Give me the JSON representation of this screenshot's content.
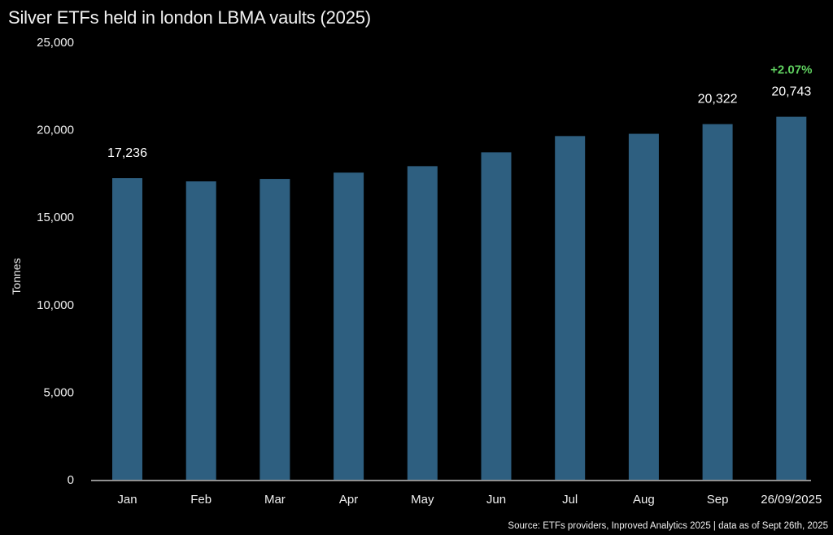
{
  "chart_data": {
    "type": "bar",
    "title": "Silver ETFs held in london LBMA vaults (2025)",
    "xlabel": "",
    "ylabel": "Tonnes",
    "ylim": [
      0,
      25000
    ],
    "yticks": [
      0,
      5000,
      10000,
      15000,
      20000,
      25000
    ],
    "ytick_labels": [
      "0",
      "5,000",
      "10,000",
      "15,000",
      "20,000",
      "25,000"
    ],
    "categories": [
      "Jan",
      "Feb",
      "Mar",
      "Apr",
      "May",
      "Jun",
      "Jul",
      "Aug",
      "Sep",
      "26/09/2025"
    ],
    "values": [
      17236,
      17050,
      17190,
      17550,
      17920,
      18710,
      19640,
      19770,
      20322,
      20743
    ],
    "data_labels": [
      {
        "index": 0,
        "text": "17,236"
      },
      {
        "index": 8,
        "text": "20,322"
      },
      {
        "index": 9,
        "text": "20,743"
      }
    ],
    "annotations": [
      {
        "index": 9,
        "text": "+2.07%",
        "color": "#5fcf5f"
      }
    ],
    "bar_color": "#2e5f80",
    "grid": false,
    "legend": "none",
    "source": "Source: ETFs providers, Inproved Analytics 2025 | data as of Sept 26th, 2025"
  }
}
